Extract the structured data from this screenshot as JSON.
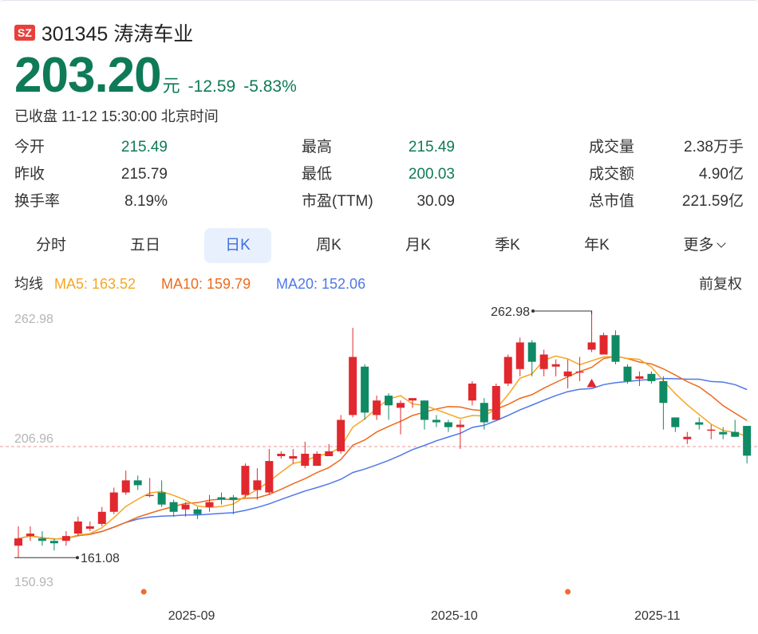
{
  "stock": {
    "market_badge": "SZ",
    "title": "301345 涛涛车业",
    "price": "203.20",
    "unit": "元",
    "change": "-12.59",
    "change_pct": "-5.83%",
    "status": "已收盘 11-12 15:30:00 北京时间"
  },
  "stats": [
    {
      "label": "今开",
      "value": "215.49",
      "color": "green"
    },
    {
      "label": "最高",
      "value": "215.49",
      "color": "green"
    },
    {
      "label": "成交量",
      "value": "2.38万手",
      "color": "dark"
    },
    {
      "label": "昨收",
      "value": "215.79",
      "color": "dark"
    },
    {
      "label": "最低",
      "value": "200.03",
      "color": "green"
    },
    {
      "label": "成交额",
      "value": "4.90亿",
      "color": "dark"
    },
    {
      "label": "换手率",
      "value": "8.19%",
      "color": "dark"
    },
    {
      "label": "市盈(TTM)",
      "value": "30.09",
      "color": "dark"
    },
    {
      "label": "总市值",
      "value": "221.59亿",
      "color": "dark"
    }
  ],
  "tabs": [
    "分时",
    "五日",
    "日K",
    "周K",
    "月K",
    "季K",
    "年K",
    "更多"
  ],
  "active_tab": 2,
  "ma": {
    "label": "均线",
    "ma5": "MA5: 163.52",
    "ma10": "MA10: 159.79",
    "ma20": "MA20: 152.06",
    "adjust": "前复权"
  },
  "colors": {
    "up": "#e0282e",
    "down": "#0f8a64",
    "ma5": "#f5a623",
    "ma10": "#ee6a1c",
    "ma20": "#4f78e8",
    "accent": "#3b6fe0"
  },
  "chart_data": {
    "type": "candlestick",
    "ylim": [
      150.93,
      262.98
    ],
    "y_labels": [
      "262.98",
      "206.96",
      "150.93"
    ],
    "ref_line": 206.96,
    "max_annotation": {
      "label": "262.98",
      "value": 262.98,
      "index": 48
    },
    "min_annotation": {
      "label": "161.08",
      "value": 161.08,
      "index": 0
    },
    "x_labels": [
      {
        "label": "2025-09",
        "index": 14.5
      },
      {
        "label": "2025-10",
        "index": 36.5
      },
      {
        "label": "2025-11",
        "index": 53.5
      }
    ],
    "event_dots": [
      10.5,
      46
    ],
    "down_marker_index": 48,
    "candles": [
      [
        166,
        169,
        174,
        161.1
      ],
      [
        170,
        171,
        174,
        168
      ],
      [
        169,
        168,
        172,
        166
      ],
      [
        168,
        167,
        169,
        164
      ],
      [
        168,
        170,
        172,
        166
      ],
      [
        171,
        176,
        178,
        170
      ],
      [
        173,
        174,
        176,
        172
      ],
      [
        175,
        180,
        182,
        174
      ],
      [
        180,
        188,
        190,
        179
      ],
      [
        188,
        193,
        197,
        187
      ],
      [
        193,
        191,
        195,
        189
      ],
      [
        187,
        187,
        194,
        186
      ],
      [
        188,
        183,
        193,
        182
      ],
      [
        184,
        180,
        185,
        178
      ],
      [
        181,
        183,
        184,
        178
      ],
      [
        181,
        179,
        182,
        177
      ],
      [
        182,
        184,
        187,
        180
      ],
      [
        186,
        185,
        188,
        183
      ],
      [
        186,
        185,
        187,
        179
      ],
      [
        187,
        199,
        200,
        186
      ],
      [
        189,
        193,
        198,
        185
      ],
      [
        188,
        201,
        206,
        187
      ],
      [
        203,
        204,
        205,
        202
      ],
      [
        202,
        203,
        206,
        200
      ],
      [
        199,
        204,
        209,
        198
      ],
      [
        199,
        204,
        205,
        202
      ],
      [
        203,
        205,
        208,
        203
      ],
      [
        205,
        218,
        220,
        204
      ],
      [
        220,
        244,
        256,
        219
      ],
      [
        240,
        221,
        241,
        218
      ],
      [
        220,
        226,
        228,
        218
      ],
      [
        228,
        224,
        229,
        218
      ],
      [
        223,
        225,
        226,
        212
      ],
      [
        226,
        227,
        227,
        223
      ],
      [
        226,
        218,
        226,
        214
      ],
      [
        218,
        217,
        220,
        215
      ],
      [
        217,
        215,
        218,
        213
      ],
      [
        215,
        216,
        218,
        206
      ],
      [
        226,
        233,
        234,
        224
      ],
      [
        225,
        217,
        227,
        214
      ],
      [
        218,
        232,
        233,
        218
      ],
      [
        233,
        244,
        245,
        232
      ],
      [
        239,
        250,
        252,
        236
      ],
      [
        250,
        242,
        251,
        236
      ],
      [
        239,
        245,
        247,
        236
      ],
      [
        240,
        241,
        243,
        236
      ],
      [
        236,
        238,
        243,
        231
      ],
      [
        238,
        238,
        244,
        234
      ],
      [
        247,
        250,
        263,
        246
      ],
      [
        245,
        253,
        254,
        251
      ],
      [
        253,
        242,
        255,
        241
      ],
      [
        240,
        234,
        241,
        233
      ],
      [
        235,
        236,
        238,
        232
      ],
      [
        237,
        234,
        238,
        233
      ],
      [
        234,
        225,
        236,
        214
      ],
      [
        219,
        215,
        219,
        213
      ],
      [
        210,
        211,
        213,
        208
      ],
      [
        217,
        216,
        219,
        214
      ],
      [
        214,
        214,
        216,
        210
      ],
      [
        213,
        212,
        215,
        210
      ],
      [
        213,
        211,
        218,
        211
      ],
      [
        215.5,
        203.2,
        215.5,
        200.0
      ]
    ]
  }
}
